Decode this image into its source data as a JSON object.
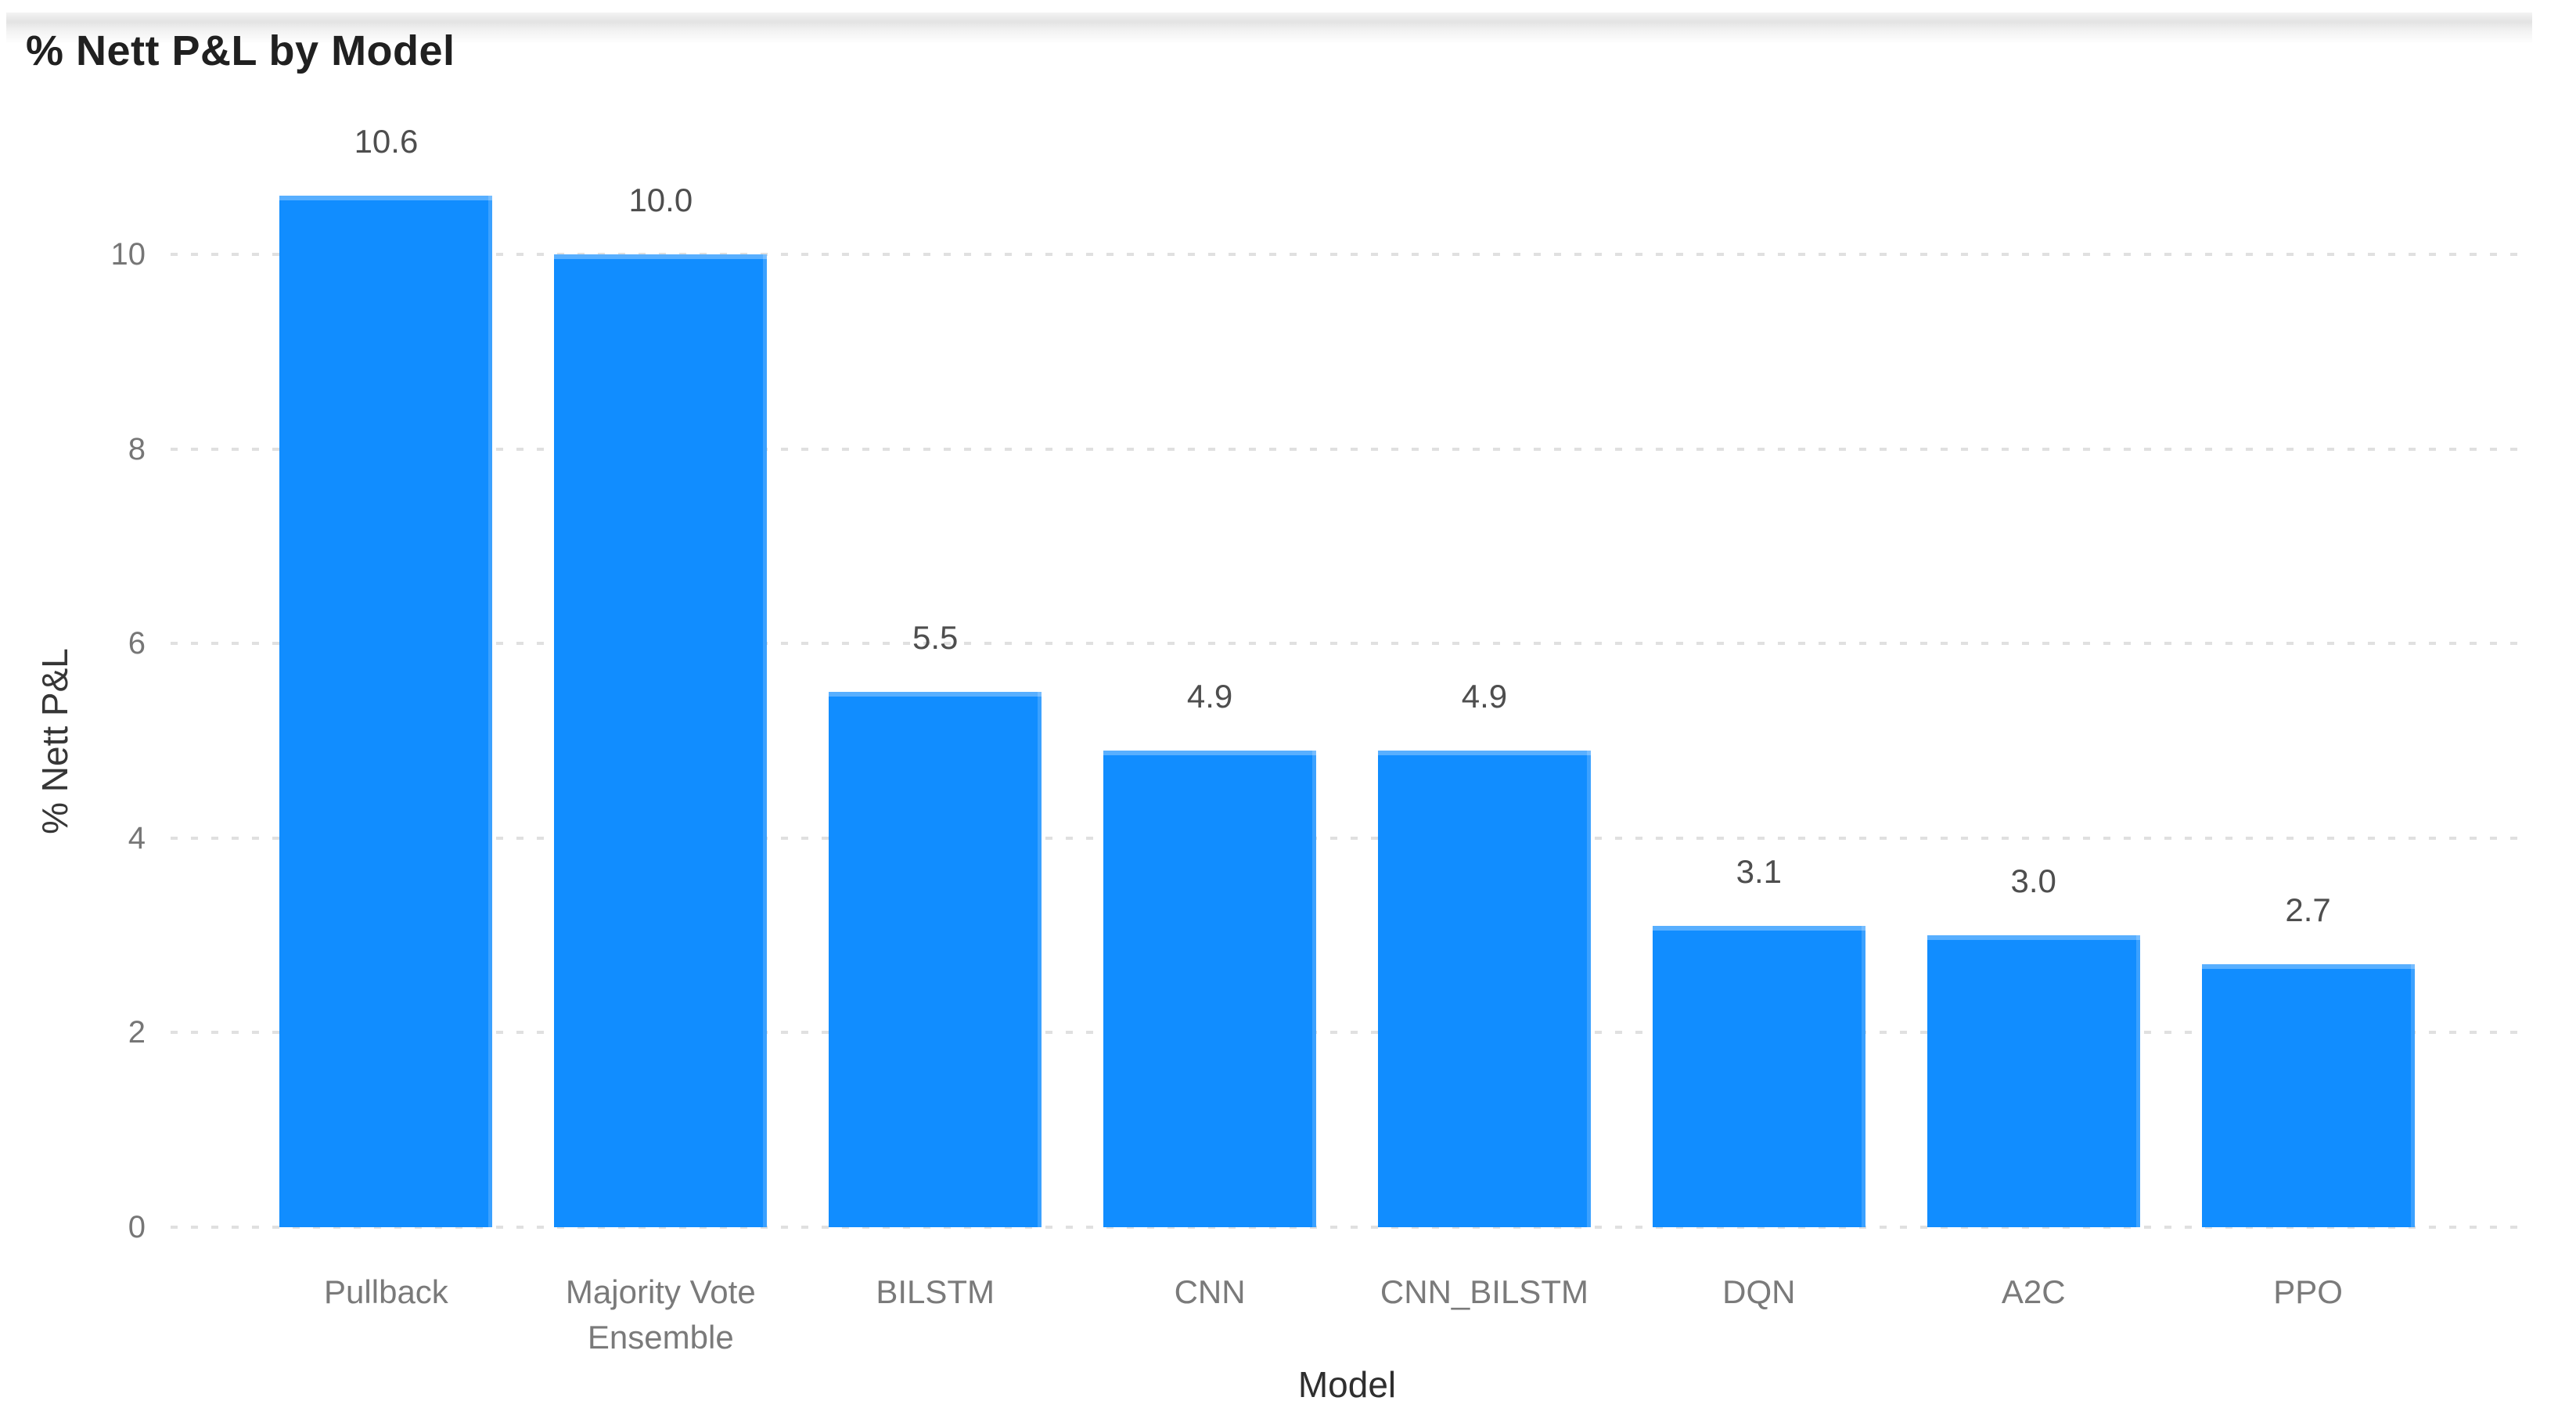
{
  "chart_data": {
    "type": "bar",
    "title": "% Nett P&L by Model",
    "xlabel": "Model",
    "ylabel": "% Nett P&L",
    "categories": [
      "Pullback",
      "Majority Vote Ensemble",
      "BILSTM",
      "CNN",
      "CNN_BILSTM",
      "DQN",
      "A2C",
      "PPO"
    ],
    "values": [
      10.6,
      10.0,
      5.5,
      4.9,
      4.9,
      3.1,
      3.0,
      2.7
    ],
    "value_labels": [
      "10.6",
      "10.0",
      "5.5",
      "4.9",
      "4.9",
      "3.1",
      "3.0",
      "2.7"
    ],
    "y_ticks": [
      0,
      2,
      4,
      6,
      8,
      10
    ],
    "ylim": [
      0,
      11.5
    ],
    "grid": "horizontal-dotted",
    "legend": "none",
    "bar_color": "#118DFF",
    "grid_color": "#E0E0E0",
    "tick_label_color": "#767676",
    "category_label_color": "#7A7A7A",
    "value_label_color": "#4E4E4E",
    "axis_title_color": "#363636",
    "title_color": "#202020"
  }
}
